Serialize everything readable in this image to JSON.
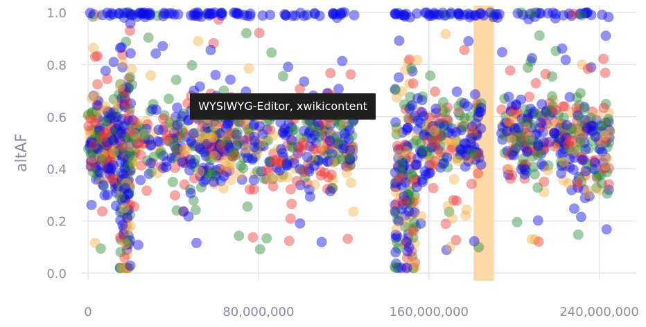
{
  "chart_data": {
    "type": "scatter",
    "title": "",
    "xlabel": "",
    "ylabel": "altAF",
    "xlim": [
      0,
      245000000
    ],
    "ylim": [
      0,
      1
    ],
    "x_ticks": [
      {
        "value": 0,
        "label": "0"
      },
      {
        "value": 80000000,
        "label": "80,000,000"
      },
      {
        "value": 160000000,
        "label": "160,000,000"
      },
      {
        "value": 240000000,
        "label": "240,000,000"
      }
    ],
    "y_ticks": [
      {
        "value": 0.0,
        "label": "0.0"
      },
      {
        "value": 0.2,
        "label": "0.2"
      },
      {
        "value": 0.4,
        "label": "0.4"
      },
      {
        "value": 0.6,
        "label": "0.6"
      },
      {
        "value": 0.8,
        "label": "0.8"
      },
      {
        "value": 1.0,
        "label": "1.0"
      }
    ],
    "grid": true,
    "series": [
      {
        "name": "blue",
        "color": "#0a0ae6"
      },
      {
        "name": "red",
        "color": "#ee3a3a"
      },
      {
        "name": "green",
        "color": "#2e8b3a"
      },
      {
        "name": "orange",
        "color": "#f5b24a"
      }
    ],
    "clusters": [
      {
        "x_start": 0,
        "x_end": 15000000,
        "center": 0.5,
        "spread": 0.09,
        "n": 170
      },
      {
        "x_start": 15000000,
        "x_end": 20000000,
        "center": 0.4,
        "spread": 0.28,
        "n": 120
      },
      {
        "x_start": 20000000,
        "x_end": 48000000,
        "center": 0.5,
        "spread": 0.07,
        "n": 120
      },
      {
        "x_start": 48000000,
        "x_end": 62000000,
        "center": 0.5,
        "spread": 0.09,
        "n": 110
      },
      {
        "x_start": 62000000,
        "x_end": 85000000,
        "center": 0.5,
        "spread": 0.08,
        "n": 110
      },
      {
        "x_start": 85000000,
        "x_end": 112000000,
        "center": 0.5,
        "spread": 0.08,
        "n": 120
      },
      {
        "x_start": 112000000,
        "x_end": 125000000,
        "center": 0.5,
        "spread": 0.09,
        "n": 80
      },
      {
        "x_start": 144000000,
        "x_end": 154000000,
        "center": 0.35,
        "spread": 0.2,
        "n": 130
      },
      {
        "x_start": 154000000,
        "x_end": 185000000,
        "center": 0.52,
        "spread": 0.08,
        "n": 170
      },
      {
        "x_start": 194000000,
        "x_end": 222000000,
        "center": 0.52,
        "spread": 0.08,
        "n": 160
      },
      {
        "x_start": 222000000,
        "x_end": 245000000,
        "center": 0.5,
        "spread": 0.09,
        "n": 150
      }
    ],
    "top_band_ranges": [
      [
        0,
        125000000
      ],
      [
        144000000,
        245000000
      ]
    ],
    "highlight_bands": [
      {
        "x_start": 181000000,
        "x_end": 190500000,
        "color": "#fcd9a6"
      }
    ],
    "tooltip": "WYSIWYG-Editor, xwikicontent"
  }
}
